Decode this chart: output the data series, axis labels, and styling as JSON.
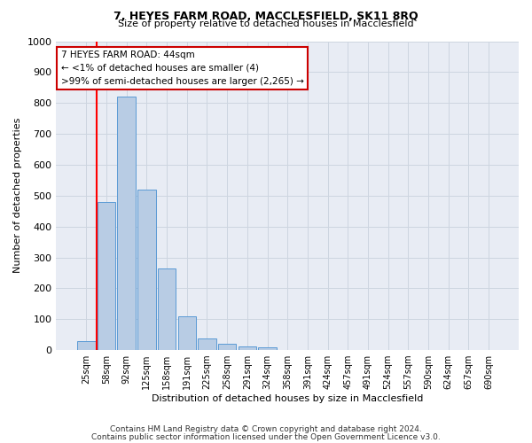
{
  "title": "7, HEYES FARM ROAD, MACCLESFIELD, SK11 8RQ",
  "subtitle": "Size of property relative to detached houses in Macclesfield",
  "xlabel": "Distribution of detached houses by size in Macclesfield",
  "ylabel": "Number of detached properties",
  "categories": [
    "25sqm",
    "58sqm",
    "92sqm",
    "125sqm",
    "158sqm",
    "191sqm",
    "225sqm",
    "258sqm",
    "291sqm",
    "324sqm",
    "358sqm",
    "391sqm",
    "424sqm",
    "457sqm",
    "491sqm",
    "524sqm",
    "557sqm",
    "590sqm",
    "624sqm",
    "657sqm",
    "690sqm"
  ],
  "values": [
    28,
    480,
    820,
    520,
    265,
    110,
    38,
    20,
    13,
    8,
    0,
    0,
    0,
    0,
    0,
    0,
    0,
    0,
    0,
    0,
    0
  ],
  "bar_color": "#b8cce4",
  "bar_edge_color": "#5b9bd5",
  "red_line_x": 0.5,
  "ylim": [
    0,
    1000
  ],
  "yticks": [
    0,
    100,
    200,
    300,
    400,
    500,
    600,
    700,
    800,
    900,
    1000
  ],
  "annotation_line1": "7 HEYES FARM ROAD: 44sqm",
  "annotation_line2": "← <1% of detached houses are smaller (4)",
  "annotation_line3": ">99% of semi-detached houses are larger (2,265) →",
  "annotation_box_color": "#ffffff",
  "annotation_box_edge_color": "#cc0000",
  "grid_color": "#cdd5e0",
  "bg_color": "#e8ecf4",
  "footer1": "Contains HM Land Registry data © Crown copyright and database right 2024.",
  "footer2": "Contains public sector information licensed under the Open Government Licence v3.0.",
  "title_fontsize": 9,
  "subtitle_fontsize": 8,
  "ylabel_fontsize": 8,
  "xlabel_fontsize": 8
}
